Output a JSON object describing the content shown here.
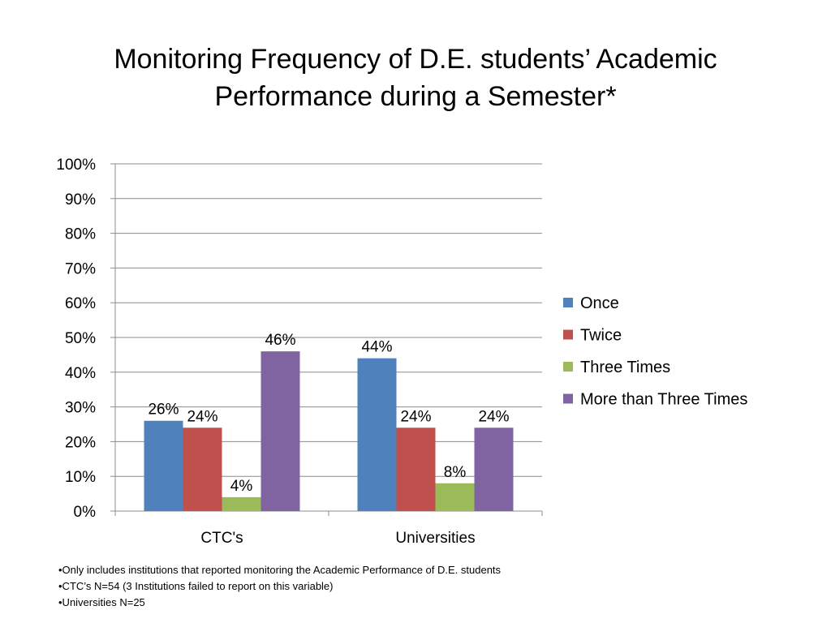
{
  "chart_data": {
    "type": "bar",
    "title": "Monitoring Frequency of D.E. students’ Academic Performance during a Semester*",
    "title_lines": [
      "Monitoring Frequency of D.E. students’ Academic",
      "Performance during a Semester*"
    ],
    "categories": [
      "CTC's",
      "Universities"
    ],
    "series": [
      {
        "name": "Once",
        "values": [
          26,
          44
        ],
        "labels": [
          "26%",
          "44%"
        ],
        "color": "#4F81BD"
      },
      {
        "name": "Twice",
        "values": [
          24,
          24
        ],
        "labels": [
          "24%",
          "24%"
        ],
        "color": "#C0504D"
      },
      {
        "name": "Three Times",
        "values": [
          4,
          8
        ],
        "labels": [
          "4%",
          "8%"
        ],
        "color": "#9BBB59"
      },
      {
        "name": "More than Three Times",
        "values": [
          46,
          24
        ],
        "labels": [
          "46%",
          "24%"
        ],
        "color": "#8064A2"
      }
    ],
    "ylim": [
      0,
      100
    ],
    "yticks": [
      "0%",
      "10%",
      "20%",
      "30%",
      "40%",
      "50%",
      "60%",
      "70%",
      "80%",
      "90%",
      "100%"
    ],
    "grid": true,
    "legend_position": "right"
  },
  "footnotes": [
    "•Only includes institutions that reported monitoring the Academic Performance of D.E.  students",
    "•CTC’s N=54 (3 Institutions failed to report on this variable)",
    "•Universities N=25"
  ]
}
